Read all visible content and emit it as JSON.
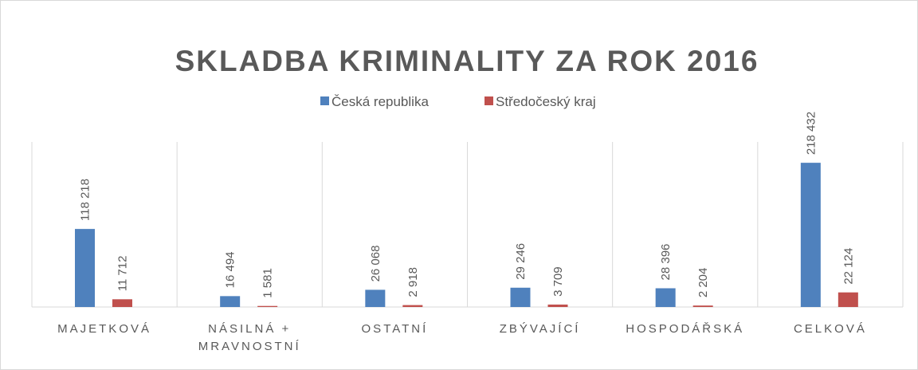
{
  "chart_data": {
    "type": "bar",
    "title": "SKLADBA KRIMINALITY ZA ROK 2016",
    "categories": [
      "MAJETKOVÁ",
      "NÁSILNÁ + MRAVNOSTNÍ",
      "OSTATNÍ",
      "ZBÝVAJÍCÍ",
      "HOSPODÁŘSKÁ",
      "CELKOVÁ"
    ],
    "series": [
      {
        "name": "Česká republika",
        "color": "#4f81bd",
        "values": [
          118218,
          16494,
          26068,
          29246,
          28396,
          218432
        ],
        "value_labels": [
          "118 218",
          "16 494",
          "26 068",
          "29 246",
          "28 396",
          "218 432"
        ]
      },
      {
        "name": "Středočeský kraj",
        "color": "#c0504d",
        "values": [
          11712,
          1581,
          2918,
          3709,
          2204,
          22124
        ],
        "value_labels": [
          "11 712",
          "1 581",
          "2 918",
          "3 709",
          "2 204",
          "22 124"
        ]
      }
    ],
    "ylim": [
      0,
      250000
    ],
    "legend": "top"
  }
}
